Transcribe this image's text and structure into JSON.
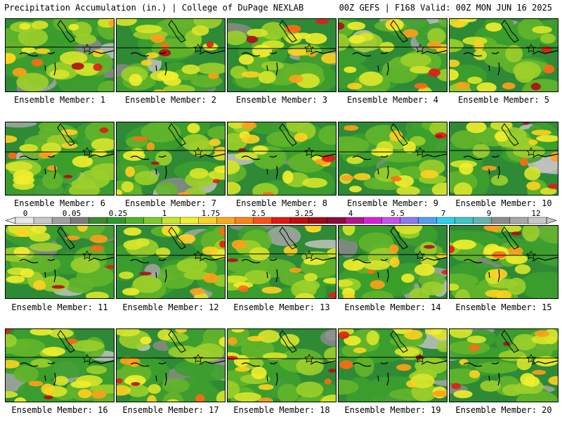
{
  "header": {
    "left": "Precipitation Accumulation (in.) | College of DuPage NEXLAB",
    "right": "00Z GEFS | F168 Valid: 00Z MON JUN 16 2025"
  },
  "members": [
    {
      "label": "Ensemble Member: 1"
    },
    {
      "label": "Ensemble Member: 2"
    },
    {
      "label": "Ensemble Member: 3"
    },
    {
      "label": "Ensemble Member: 4"
    },
    {
      "label": "Ensemble Member: 5"
    },
    {
      "label": "Ensemble Member: 6"
    },
    {
      "label": "Ensemble Member: 7"
    },
    {
      "label": "Ensemble Member: 8"
    },
    {
      "label": "Ensemble Member: 9"
    },
    {
      "label": "Ensemble Member: 10"
    },
    {
      "label": "Ensemble Member: 11"
    },
    {
      "label": "Ensemble Member: 12"
    },
    {
      "label": "Ensemble Member: 13"
    },
    {
      "label": "Ensemble Member: 14"
    },
    {
      "label": "Ensemble Member: 15"
    },
    {
      "label": "Ensemble Member: 16"
    },
    {
      "label": "Ensemble Member: 17"
    },
    {
      "label": "Ensemble Member: 18"
    },
    {
      "label": "Ensemble Member: 19"
    },
    {
      "label": "Ensemble Member: 20"
    }
  ],
  "colorbar": {
    "labels": [
      "0",
      "0.05",
      "0.25",
      "1",
      "1.75",
      "2.5",
      "3.25",
      "4",
      "5.5",
      "7",
      "9",
      "12"
    ],
    "colors": [
      "#e8e8e8",
      "#c8c8c8",
      "#a0a0a0",
      "#7c7c7c",
      "#3a8a2e",
      "#2e9a2e",
      "#50b428",
      "#7ecb28",
      "#c8e628",
      "#f0f028",
      "#ffd21e",
      "#ffaa14",
      "#ff8214",
      "#ff5014",
      "#e61414",
      "#c80a0a",
      "#a00a14",
      "#8c0a3c",
      "#b4148c",
      "#dc1edc",
      "#c850f0",
      "#8c78f0",
      "#50a0f0",
      "#28d2f0",
      "#3cc8c8",
      "#64b4b4",
      "#8c8c8c",
      "#a8a8a8",
      "#c8c8c8"
    ]
  }
}
